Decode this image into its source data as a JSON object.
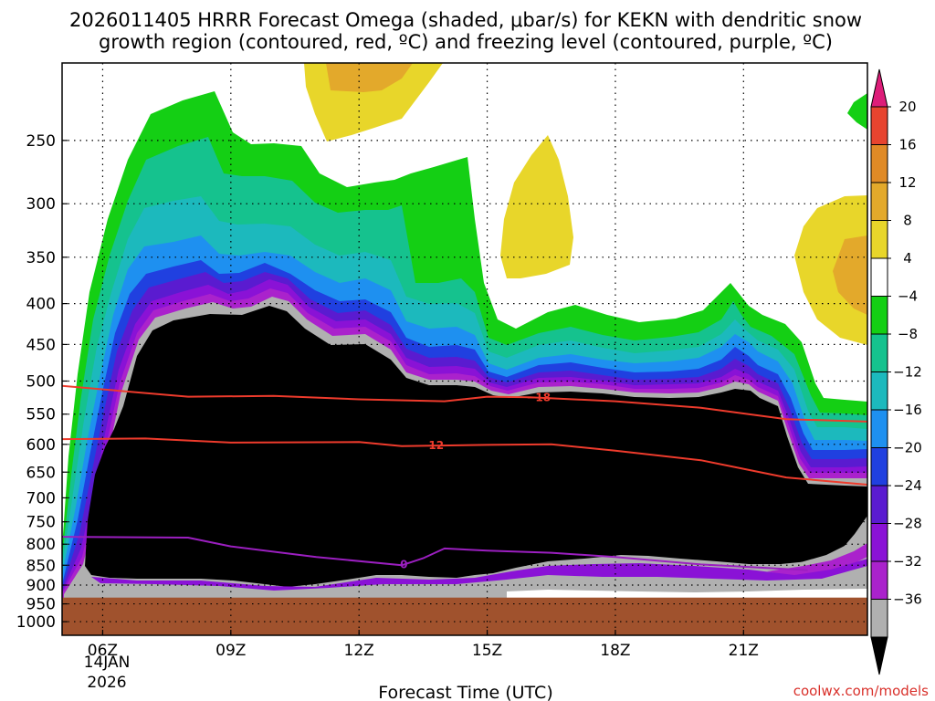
{
  "chart_data": {
    "type": "heatmap",
    "title_line1": "2026011405 HRRR Forecast Omega (shaded, μbar/s) for KEKN with dendritic snow",
    "title_line2": "growth region (contoured, red, ºC) and freezing level (contoured, purple, ºC)",
    "xlabel": "Forecast Time (UTC)",
    "credit": "coolwx.com/models",
    "x_ticks": [
      "06Z",
      "09Z",
      "12Z",
      "15Z",
      "18Z",
      "21Z"
    ],
    "x_hours": [
      6,
      9,
      12,
      15,
      18,
      21
    ],
    "x_range": [
      5.05,
      23.9
    ],
    "date_label": [
      "14JAN",
      "2026"
    ],
    "y_ticks": [
      250,
      300,
      350,
      400,
      450,
      500,
      550,
      600,
      650,
      700,
      750,
      800,
      850,
      900,
      950,
      1000
    ],
    "y_range_hpa": [
      200,
      1040
    ],
    "y_scale": "log pressure",
    "grid": true,
    "ground_top_hpa": 933,
    "colorbar": {
      "labels": [
        "20",
        "16",
        "12",
        "8",
        "4",
        "−4",
        "−8",
        "−12",
        "−16",
        "−20",
        "−24",
        "−28",
        "−32",
        "−36"
      ],
      "colors": [
        "#ffffff",
        "#e8d62a",
        "#e3a92b",
        "#e08a26",
        "#e7442f",
        "#dd1d79",
        "#14cf14",
        "#15c28e",
        "#1cb9bd",
        "#1e90f0",
        "#2040e0",
        "#5a1bd0",
        "#8a12d6",
        "#aa22cc",
        "#b0b0b0",
        "#000000"
      ]
    },
    "contours": [
      {
        "label": "−18",
        "color": "#ee3b2c",
        "x": [
          5.05,
          8,
          10,
          12,
          14,
          15,
          16,
          18,
          20,
          22,
          23.9
        ],
        "p": [
          507,
          523,
          522,
          527,
          530,
          523,
          524,
          530,
          540,
          558,
          562
        ]
      },
      {
        "label": "−12",
        "color": "#ee3b2c",
        "x": [
          5.05,
          7,
          9,
          12,
          13,
          15,
          16.5,
          18,
          20,
          22,
          23.9
        ],
        "p": [
          591,
          590,
          597,
          596,
          603,
          601,
          600,
          611,
          628,
          660,
          674
        ]
      },
      {
        "label": "0",
        "color": "#9b1fc0",
        "x": [
          5.05,
          8,
          9,
          11,
          13,
          13.5,
          14,
          15,
          16.5,
          18,
          20,
          22.5
        ],
        "p": [
          783,
          785,
          805,
          830,
          850,
          833,
          810,
          815,
          820,
          830,
          848,
          862
        ]
      }
    ],
    "contour_label_positions": [
      {
        "text": "−18",
        "x": 16.2,
        "p": 524,
        "color": "#ee3b2c"
      },
      {
        "text": "−12",
        "x": 13.7,
        "p": 602,
        "color": "#ee3b2c"
      },
      {
        "text": "0",
        "x": 13.05,
        "p": 848,
        "color": "#9b1fc0"
      }
    ]
  }
}
